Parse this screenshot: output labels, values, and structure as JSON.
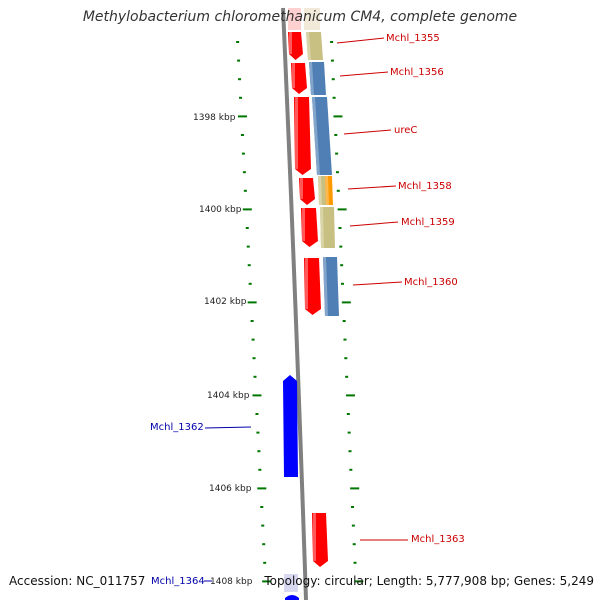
{
  "title": "Methylobacterium chloromethanicum CM4, complete genome",
  "footer": {
    "accession": "Accession: NC_011757",
    "topology": "Topology: circular; Length: 5,777,908 bp; Genes: 5,249"
  },
  "colors": {
    "backbone": "#808080",
    "forward_gene": "#ff0000",
    "reverse_gene": "#0000ff",
    "feature_khaki": "#c8c083",
    "feature_steelblue": "#4f7fb4",
    "feature_orange": "#ff9900",
    "tick": "#007700",
    "label_forward": "#cc0000",
    "label_reverse": "#0000aa"
  },
  "chart_data": {
    "type": "genome-map",
    "axis": {
      "unit": "kbp",
      "tick_labels": [
        "1398 kbp",
        "1400 kbp",
        "1402 kbp",
        "1404 kbp",
        "1406 kbp",
        "1408 kbp"
      ]
    },
    "genes": [
      {
        "label": "Mchl_1355",
        "strand": "+"
      },
      {
        "label": "Mchl_1356",
        "strand": "+"
      },
      {
        "label": "ureC",
        "strand": "+"
      },
      {
        "label": "Mchl_1358",
        "strand": "+"
      },
      {
        "label": "Mchl_1359",
        "strand": "+"
      },
      {
        "label": "Mchl_1360",
        "strand": "+"
      },
      {
        "label": "Mchl_1362",
        "strand": "-"
      },
      {
        "label": "Mchl_1363",
        "strand": "+"
      },
      {
        "label": "Mchl_1364",
        "strand": "-"
      }
    ]
  }
}
